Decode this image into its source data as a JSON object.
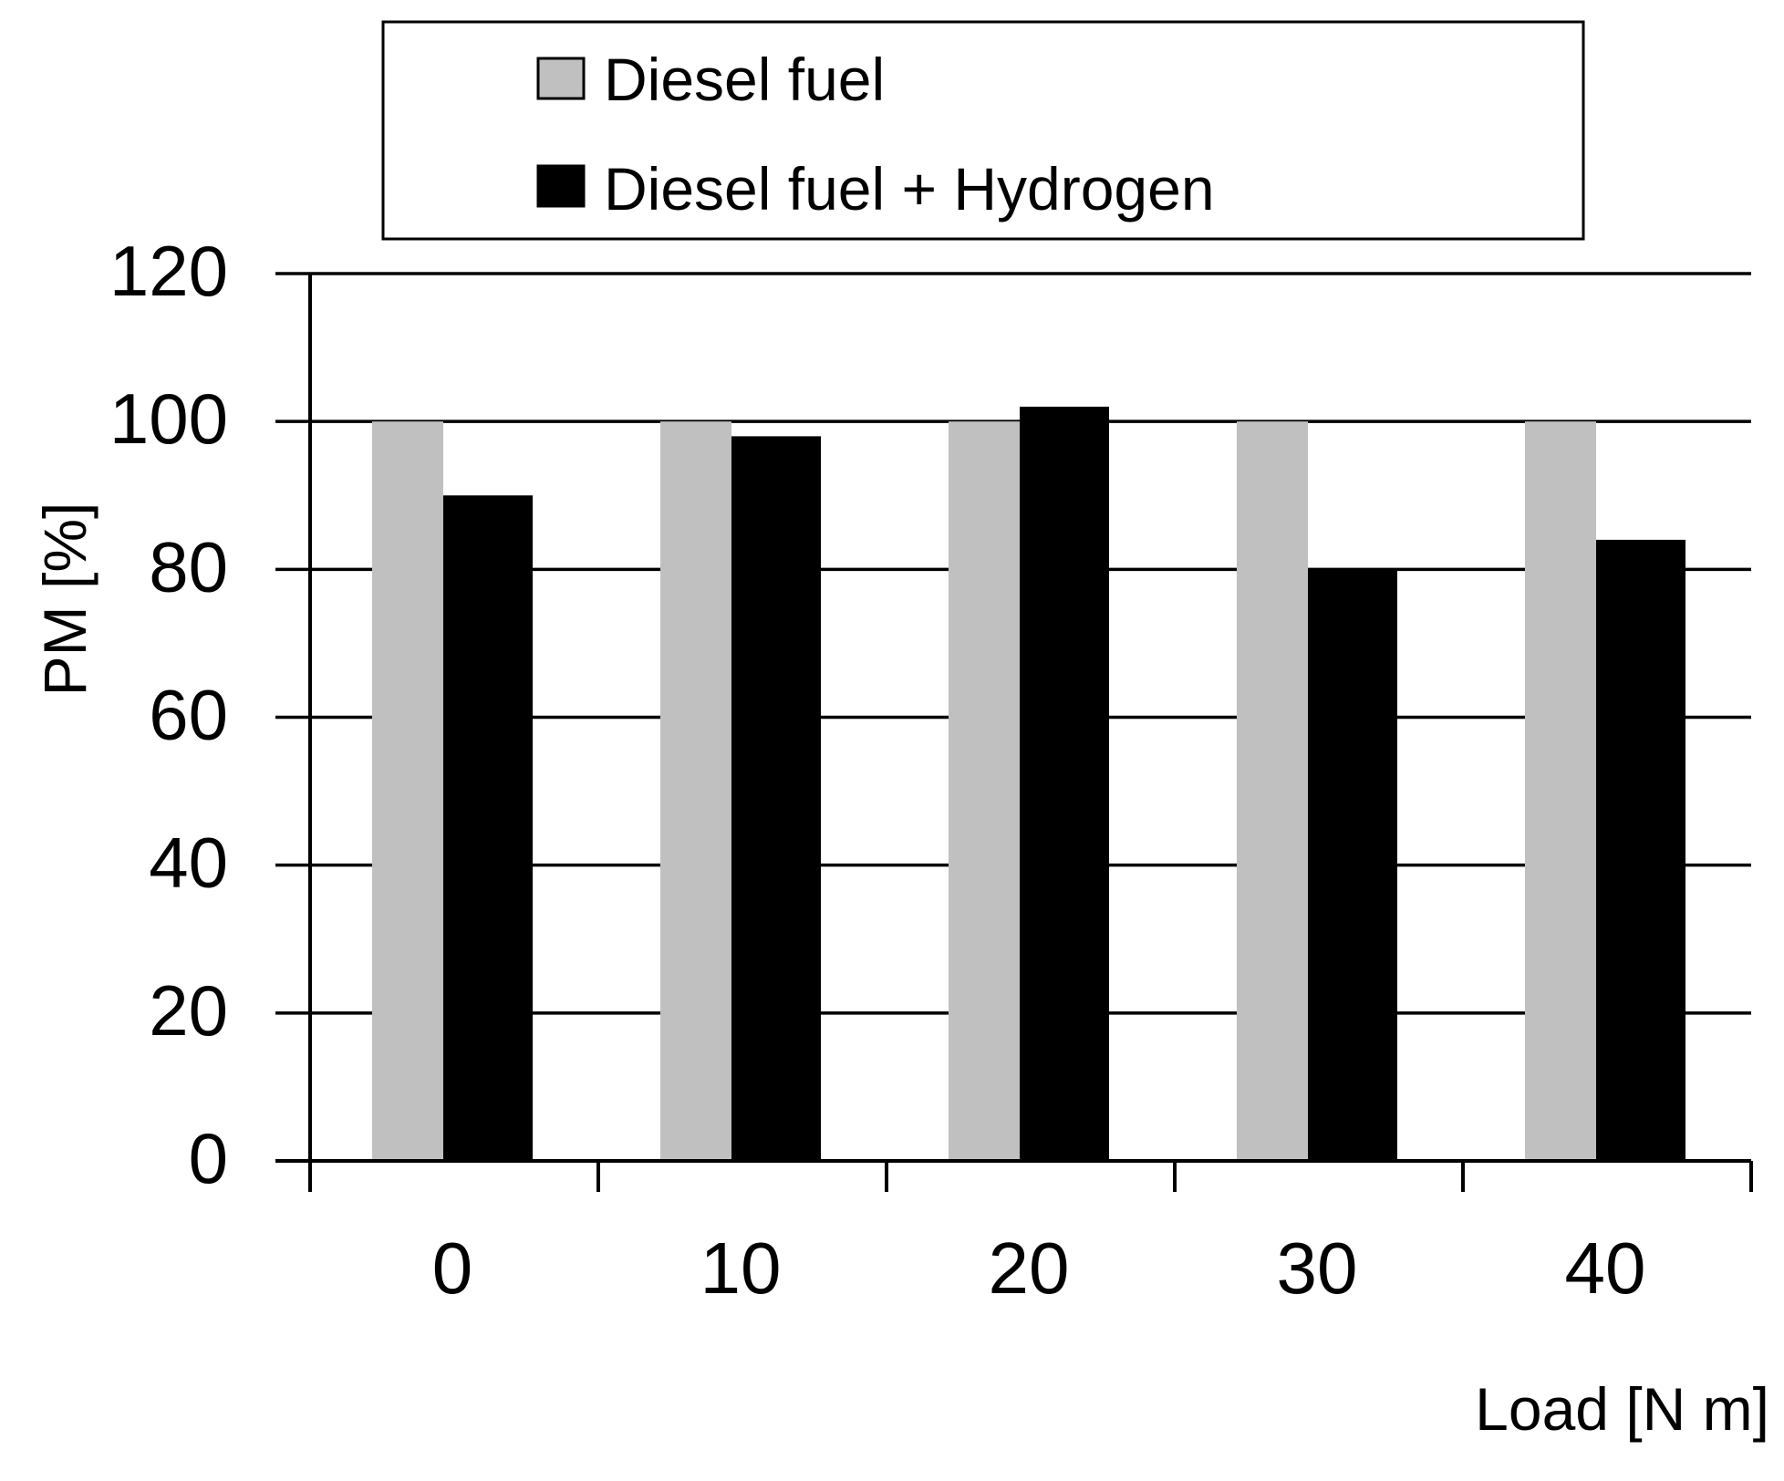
{
  "chart_data": {
    "type": "bar",
    "categories": [
      "0",
      "10",
      "20",
      "30",
      "40"
    ],
    "series": [
      {
        "name": "Diesel fuel",
        "values": [
          100,
          100,
          100,
          100,
          100
        ],
        "color": "#c0c0c0"
      },
      {
        "name": "Diesel fuel + Hydrogen",
        "values": [
          90,
          98,
          102,
          80,
          84
        ],
        "color": "#000000"
      }
    ],
    "xlabel": "Load [N m]",
    "ylabel": "PM [%]",
    "ylim": [
      0,
      120
    ],
    "yticks": [
      "0",
      "20",
      "40",
      "60",
      "80",
      "100",
      "120"
    ],
    "grid": true,
    "legend": "top"
  }
}
